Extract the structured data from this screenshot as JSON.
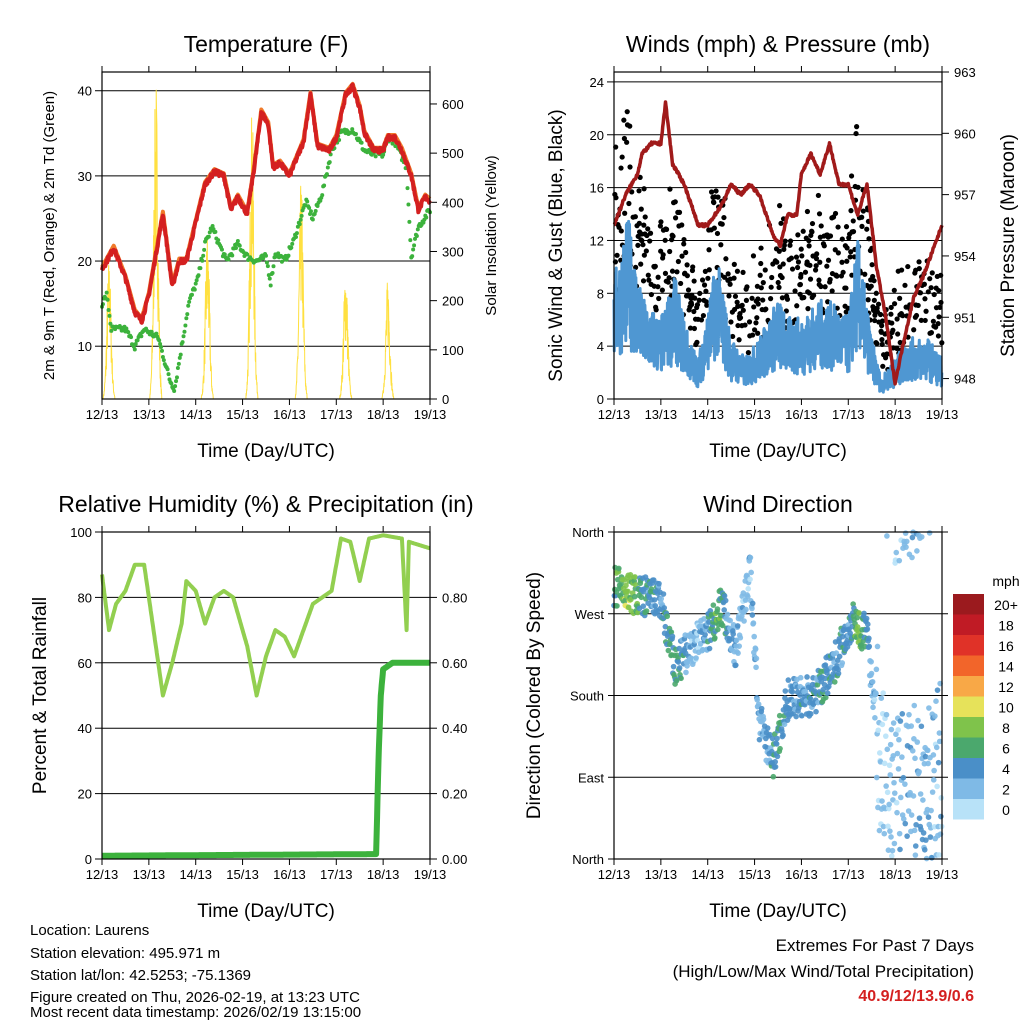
{
  "chart_data": [
    {
      "type": "line",
      "title": "Temperature (F)",
      "xlabel": "Time (Day/UTC)",
      "ylabel": "2m & 9m T (Red, Orange) & 2m Td (Green)",
      "y2label": "Solar Insolation (Yellow)",
      "ylim": [
        3.8,
        42.2
      ],
      "y2lim": [
        0,
        665
      ],
      "yticks": [
        10,
        20,
        30,
        40
      ],
      "y2ticks": [
        0,
        100,
        200,
        300,
        400,
        500,
        600
      ],
      "xticks": [
        "12/13",
        "13/13",
        "14/13",
        "15/13",
        "16/13",
        "17/13",
        "18/13",
        "19/13"
      ],
      "series": [
        {
          "name": "2m T",
          "color": "#d42020",
          "points": [
            [
              0,
              19
            ],
            [
              0.25,
              21.5
            ],
            [
              0.5,
              18
            ],
            [
              0.7,
              14
            ],
            [
              0.85,
              13
            ],
            [
              1.0,
              16
            ],
            [
              1.3,
              25.5
            ],
            [
              1.5,
              17
            ],
            [
              1.65,
              20
            ],
            [
              1.8,
              20
            ],
            [
              2.2,
              29
            ],
            [
              2.4,
              30.5
            ],
            [
              2.6,
              30
            ],
            [
              2.75,
              26
            ],
            [
              2.9,
              27.5
            ],
            [
              3.1,
              25.5
            ],
            [
              3.25,
              31
            ],
            [
              3.4,
              37.5
            ],
            [
              3.55,
              36
            ],
            [
              3.65,
              31
            ],
            [
              3.8,
              31.5
            ],
            [
              4.0,
              30
            ],
            [
              4.3,
              34
            ],
            [
              4.45,
              39.5
            ],
            [
              4.6,
              33.5
            ],
            [
              4.85,
              33
            ],
            [
              5.0,
              34.5
            ],
            [
              5.2,
              39.5
            ],
            [
              5.35,
              40.5
            ],
            [
              5.5,
              38
            ],
            [
              5.6,
              35
            ],
            [
              5.8,
              33
            ],
            [
              6.0,
              33
            ],
            [
              6.1,
              34.5
            ],
            [
              6.25,
              34.5
            ],
            [
              6.4,
              33
            ],
            [
              6.6,
              30
            ],
            [
              6.75,
              26
            ],
            [
              6.9,
              27.5
            ],
            [
              7.0,
              27
            ]
          ]
        },
        {
          "name": "2m Td",
          "color": "#3cb23c",
          "points": [
            [
              0,
              15
            ],
            [
              0.1,
              16
            ],
            [
              0.2,
              12
            ],
            [
              0.5,
              12
            ],
            [
              0.7,
              10
            ],
            [
              0.9,
              12
            ],
            [
              1.2,
              11
            ],
            [
              1.45,
              6
            ],
            [
              1.55,
              5
            ],
            [
              1.7,
              10
            ],
            [
              1.85,
              15
            ],
            [
              2.05,
              18
            ],
            [
              2.2,
              22
            ],
            [
              2.35,
              24
            ],
            [
              2.5,
              22
            ],
            [
              2.65,
              20
            ],
            [
              2.9,
              22
            ],
            [
              3.1,
              20.5
            ],
            [
              3.3,
              20
            ],
            [
              3.5,
              20.5
            ],
            [
              3.6,
              17.5
            ],
            [
              3.7,
              21
            ],
            [
              3.9,
              20
            ],
            [
              4.1,
              22.5
            ],
            [
              4.35,
              27
            ],
            [
              4.5,
              25
            ],
            [
              4.7,
              28
            ],
            [
              4.9,
              33
            ],
            [
              5.1,
              35
            ],
            [
              5.35,
              35.5
            ],
            [
              5.6,
              33
            ],
            [
              5.8,
              32.5
            ],
            [
              6.0,
              32.5
            ],
            [
              6.1,
              34.5
            ],
            [
              6.25,
              34
            ],
            [
              6.5,
              31
            ],
            [
              6.6,
              20.5
            ],
            [
              6.75,
              24
            ],
            [
              7.0,
              26
            ]
          ]
        },
        {
          "name": "Solar Insolation",
          "color": "#ffe040",
          "daily_peaks": [
            [
              0.15,
              290
            ],
            [
              1.15,
              665
            ],
            [
              2.25,
              350
            ],
            [
              3.2,
              600
            ],
            [
              4.25,
              450
            ],
            [
              5.2,
              280
            ],
            [
              6.1,
              250
            ]
          ]
        }
      ]
    },
    {
      "type": "line",
      "title": "Winds (mph) & Pressure (mb)",
      "xlabel": "Time (Day/UTC)",
      "ylabel": "Sonic Wind & Gust (Blue, Black)",
      "y2label": "Station Pressure (Maroon)",
      "ylim": [
        0,
        24.75
      ],
      "y2lim": [
        947,
        963
      ],
      "yticks": [
        0,
        4,
        8,
        12,
        16,
        20,
        24
      ],
      "y2ticks": [
        948,
        951,
        954,
        957,
        960,
        963
      ],
      "xticks": [
        "12/13",
        "13/13",
        "14/13",
        "15/13",
        "16/13",
        "17/13",
        "18/13",
        "19/13"
      ],
      "series": [
        {
          "name": "Wind",
          "color": "#4f97d2",
          "points": [
            [
              0,
              6
            ],
            [
              0.3,
              9
            ],
            [
              0.6,
              5
            ],
            [
              1.0,
              4
            ],
            [
              1.3,
              6
            ],
            [
              1.6,
              3
            ],
            [
              1.8,
              2
            ],
            [
              2.2,
              7
            ],
            [
              2.5,
              3
            ],
            [
              2.8,
              2
            ],
            [
              3.1,
              3
            ],
            [
              3.5,
              5
            ],
            [
              3.7,
              4
            ],
            [
              4.0,
              4
            ],
            [
              4.5,
              5
            ],
            [
              5.0,
              4
            ],
            [
              5.2,
              8
            ],
            [
              5.5,
              3
            ],
            [
              5.7,
              1
            ],
            [
              6.0,
              2
            ],
            [
              6.3,
              3
            ],
            [
              6.7,
              3
            ],
            [
              7.0,
              2
            ]
          ]
        },
        {
          "name": "Gust",
          "color": "#000000",
          "max": 22.8
        },
        {
          "name": "Pressure",
          "color": "#a01a1a",
          "points": [
            [
              0,
              955.5
            ],
            [
              0.25,
              957
            ],
            [
              0.5,
              958
            ],
            [
              0.6,
              959
            ],
            [
              0.8,
              959.5
            ],
            [
              1.0,
              959.5
            ],
            [
              1.1,
              961.5
            ],
            [
              1.25,
              958.5
            ],
            [
              1.5,
              957.5
            ],
            [
              1.8,
              955.5
            ],
            [
              2.0,
              955.5
            ],
            [
              2.3,
              956.5
            ],
            [
              2.5,
              957.5
            ],
            [
              2.7,
              957
            ],
            [
              2.9,
              957.5
            ],
            [
              3.1,
              957
            ],
            [
              3.4,
              955
            ],
            [
              3.55,
              954.5
            ],
            [
              3.7,
              956
            ],
            [
              3.9,
              956
            ],
            [
              4.0,
              958
            ],
            [
              4.2,
              959
            ],
            [
              4.4,
              958
            ],
            [
              4.6,
              959.5
            ],
            [
              4.8,
              957.5
            ],
            [
              5.0,
              957.5
            ],
            [
              5.2,
              956
            ],
            [
              5.4,
              957.5
            ],
            [
              5.6,
              953.5
            ],
            [
              5.8,
              951
            ],
            [
              5.95,
              948.5
            ],
            [
              6.0,
              947.8
            ],
            [
              6.2,
              950
            ],
            [
              6.4,
              952
            ],
            [
              6.6,
              953
            ],
            [
              7.0,
              955.5
            ]
          ]
        }
      ]
    },
    {
      "type": "line",
      "title": "Relative Humidity (%) & Precipitation (in)",
      "xlabel": "Time (Day/UTC)",
      "ylabel": "Percent & Total Rainfall",
      "ylim": [
        0,
        100
      ],
      "y2lim": [
        0,
        1
      ],
      "yticks": [
        0,
        20,
        40,
        60,
        80,
        100
      ],
      "y2ticks": [
        "0.00",
        "0.20",
        "0.40",
        "0.60",
        "0.80"
      ],
      "xticks": [
        "12/13",
        "13/13",
        "14/13",
        "15/13",
        "16/13",
        "17/13",
        "18/13",
        "19/13"
      ],
      "series": [
        {
          "name": "RH",
          "color": "#92cf50",
          "points": [
            [
              0,
              87
            ],
            [
              0.15,
              70
            ],
            [
              0.3,
              78
            ],
            [
              0.5,
              82
            ],
            [
              0.7,
              90
            ],
            [
              0.9,
              90
            ],
            [
              1.1,
              70
            ],
            [
              1.3,
              50
            ],
            [
              1.5,
              60
            ],
            [
              1.7,
              72
            ],
            [
              1.8,
              85
            ],
            [
              2.0,
              82
            ],
            [
              2.2,
              72
            ],
            [
              2.4,
              80
            ],
            [
              2.6,
              82
            ],
            [
              2.8,
              80
            ],
            [
              3.1,
              65
            ],
            [
              3.3,
              50
            ],
            [
              3.5,
              62
            ],
            [
              3.7,
              70
            ],
            [
              3.9,
              68
            ],
            [
              4.1,
              62
            ],
            [
              4.3,
              70
            ],
            [
              4.5,
              78
            ],
            [
              4.7,
              80
            ],
            [
              4.9,
              82
            ],
            [
              5.1,
              98
            ],
            [
              5.3,
              97
            ],
            [
              5.5,
              85
            ],
            [
              5.7,
              98
            ],
            [
              6.0,
              99
            ],
            [
              6.4,
              98
            ],
            [
              6.5,
              70
            ],
            [
              6.55,
              97
            ],
            [
              7.0,
              95
            ]
          ]
        },
        {
          "name": "Total Precipitation",
          "color": "#3cb23c",
          "points": [
            [
              0,
              0.01
            ],
            [
              5.85,
              0.015
            ],
            [
              5.9,
              0.3
            ],
            [
              5.95,
              0.5
            ],
            [
              6.0,
              0.58
            ],
            [
              6.2,
              0.6
            ],
            [
              7.0,
              0.6
            ]
          ]
        }
      ]
    },
    {
      "type": "scatter",
      "title": "Wind Direction",
      "xlabel": "Time (Day/UTC)",
      "ylabel": "Direction (Colored By Speed)",
      "yticks": [
        "North",
        "East",
        "South",
        "West",
        "North"
      ],
      "ylim": [
        0,
        360
      ],
      "xticks": [
        "12/13",
        "13/13",
        "14/13",
        "15/13",
        "16/13",
        "17/13",
        "18/13",
        "19/13"
      ],
      "direction_track": [
        [
          0,
          300
        ],
        [
          0.5,
          290
        ],
        [
          1.0,
          285
        ],
        [
          1.3,
          210
        ],
        [
          1.6,
          230
        ],
        [
          2.0,
          250
        ],
        [
          2.3,
          280
        ],
        [
          2.6,
          230
        ],
        [
          2.9,
          320
        ],
        [
          3.1,
          150
        ],
        [
          3.4,
          110
        ],
        [
          3.7,
          175
        ],
        [
          4.3,
          180
        ],
        [
          4.7,
          215
        ],
        [
          5.1,
          265
        ],
        [
          5.4,
          245
        ],
        [
          5.8,
          70
        ],
        [
          6.2,
          60
        ],
        [
          6.6,
          80
        ],
        [
          7.0,
          95
        ]
      ],
      "legend": {
        "title": "mph",
        "labels": [
          "20+",
          "18",
          "16",
          "14",
          "12",
          "10",
          "8",
          "6",
          "4",
          "2",
          "0"
        ],
        "colors": [
          "#9b1a1e",
          "#c01b25",
          "#e03228",
          "#f2652a",
          "#f8a847",
          "#e6e25a",
          "#7fc34b",
          "#4ba86d",
          "#4a8fc8",
          "#7fbae6",
          "#b8e2f8"
        ]
      }
    }
  ],
  "footer": {
    "location": "Location: Laurens",
    "elevation": "Station elevation: 495.971 m",
    "latlon": "Station lat/lon: 42.5253; -75.1369",
    "created": "Figure created on Thu, 2026-02-19, at 13:23 UTC",
    "recent": "Most recent data timestamp: 2026/02/19 13:15:00",
    "extremes_title": "Extremes For Past 7 Days",
    "extremes_sub": "(High/Low/Max Wind/Total Precipitation)",
    "extremes_value": "40.9/12/13.9/0.6"
  }
}
